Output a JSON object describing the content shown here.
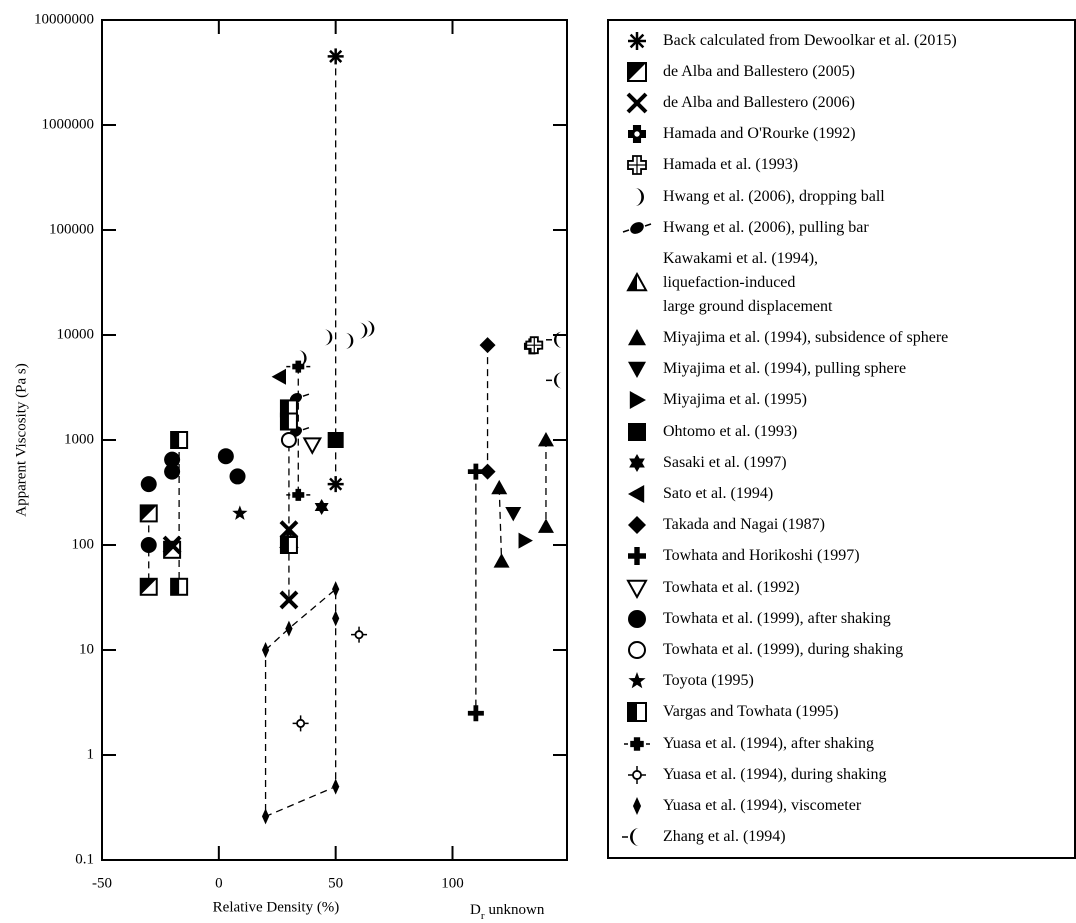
{
  "chart_data": {
    "type": "scatter",
    "x_label": "Relative Density (%)",
    "unknown_label": {
      "main": "D",
      "sub": "r",
      "rest": "unknown"
    },
    "y_label": "Apparent Viscosity (Pa s)",
    "xlim": [
      -50,
      149
    ],
    "xticks": [
      -50,
      0,
      50,
      100
    ],
    "ylim": [
      0.1,
      10000000
    ],
    "yticks": [
      0.1,
      1,
      10,
      100,
      1000,
      10000,
      100000,
      1000000,
      10000000
    ],
    "log_y": true,
    "series": [
      {
        "name": "Back calculated from Dewoolkar et al. (2015)",
        "marker": "asterisk",
        "color": "#000000",
        "dashed": true,
        "x": [
          50,
          50
        ],
        "values": [
          4500000,
          380
        ]
      },
      {
        "name": "de Alba and Ballestero (2005)",
        "marker": "halfsq_diag",
        "color": "#000000",
        "dashed": true,
        "x": [
          -30,
          -30,
          null,
          -20
        ],
        "values": [
          200,
          40,
          null,
          90
        ]
      },
      {
        "name": "de Alba and Ballestero (2006)",
        "marker": "x",
        "color": "#000000",
        "dashed": true,
        "x": [
          -20,
          null,
          30,
          30
        ],
        "values": [
          100,
          null,
          140,
          30
        ]
      },
      {
        "name": "Hamada and O'Rourke (1992)",
        "marker": "cross_bold",
        "color": "#000000",
        "x": [
          134
        ],
        "values": [
          7800
        ]
      },
      {
        "name": "Hamada et al. (1993)",
        "marker": "cross_hollow",
        "color": "#000000",
        "x": [
          135
        ],
        "values": [
          8000
        ]
      },
      {
        "name": "Hwang et al. (2006), dropping ball",
        "marker": "crescent_r",
        "color": "#000000",
        "x": [
          35,
          46,
          55,
          61,
          64
        ],
        "values": [
          6000,
          9500,
          8800,
          11000,
          11500
        ]
      },
      {
        "name": "Hwang et al. (2006), pulling bar",
        "marker": "ball_dash",
        "color": "#000000",
        "x": [
          33,
          33
        ],
        "values": [
          2500,
          1200
        ]
      },
      {
        "name": "Kawakami et al. (1994),\nliquefaction-induced\nlarge ground displacement",
        "marker": "half_tri",
        "color": "#000000",
        "x": [
          30
        ],
        "values": [
          110
        ]
      },
      {
        "name": "Miyajima et al. (1994), subsidence of sphere",
        "marker": "tri_up",
        "color": "#000000",
        "dashed": true,
        "x": [
          120,
          121,
          null,
          140,
          140
        ],
        "values": [
          350,
          70,
          null,
          1000,
          150
        ]
      },
      {
        "name": "Miyajima et al. (1994), pulling sphere",
        "marker": "tri_down",
        "color": "#000000",
        "x": [
          126
        ],
        "values": [
          200
        ]
      },
      {
        "name": "Miyajima et al. (1995)",
        "marker": "tri_right",
        "color": "#000000",
        "x": [
          131
        ],
        "values": [
          110
        ]
      },
      {
        "name": "Ohtomo et al. (1993)",
        "marker": "square",
        "color": "#000000",
        "x": [
          50
        ],
        "values": [
          1000
        ]
      },
      {
        "name": "Sasaki et al. (1997)",
        "marker": "star6",
        "color": "#000000",
        "x": [
          44
        ],
        "values": [
          230
        ]
      },
      {
        "name": "Sato et al. (1994)",
        "marker": "tri_left",
        "color": "#000000",
        "x": [
          26
        ],
        "values": [
          4000
        ]
      },
      {
        "name": "Takada and Nagai (1987)",
        "marker": "diamond",
        "color": "#000000",
        "dashed": true,
        "x": [
          115,
          115
        ],
        "values": [
          8000,
          500
        ]
      },
      {
        "name": "Towhata and Horikoshi (1997)",
        "marker": "plus_bold",
        "color": "#000000",
        "dashed": true,
        "x": [
          110,
          110
        ],
        "values": [
          500,
          2.5
        ]
      },
      {
        "name": "Towhata et al. (1992)",
        "marker": "tri_down_hollow",
        "color": "#000000",
        "x": [
          40
        ],
        "values": [
          900
        ]
      },
      {
        "name": "Towhata et al. (1999), after shaking",
        "marker": "circle",
        "color": "#000000",
        "x": [
          -30,
          -30,
          -20,
          -20,
          3,
          8
        ],
        "values": [
          380,
          100,
          650,
          500,
          700,
          450
        ]
      },
      {
        "name": "Towhata et al. (1999), during shaking",
        "marker": "circle_hollow",
        "color": "#000000",
        "x": [
          30
        ],
        "values": [
          1000
        ]
      },
      {
        "name": "Toyota (1995)",
        "marker": "star5",
        "color": "#000000",
        "x": [
          9
        ],
        "values": [
          200
        ]
      },
      {
        "name": "Vargas and Towhata (1995)",
        "marker": "halfsq_vert",
        "color": "#000000",
        "dashed": true,
        "x": [
          -17,
          -17,
          null,
          30,
          30,
          30
        ],
        "values": [
          1000,
          40,
          null,
          2000,
          1500,
          100
        ]
      },
      {
        "name": "Yuasa et al. (1994), after shaking",
        "marker": "plus_dash",
        "color": "#000000",
        "dashed": true,
        "x": [
          34,
          34
        ],
        "values": [
          5000,
          300
        ]
      },
      {
        "name": "Yuasa et al. (1994), during shaking",
        "marker": "diamond_hollow",
        "color": "#000000",
        "x": [
          35,
          60
        ],
        "values": [
          2,
          14
        ]
      },
      {
        "name": "Yuasa et al. (1994), viscometer",
        "marker": "thin_diamond",
        "color": "#000000",
        "dashed": true,
        "closed": true,
        "x": [
          20,
          30,
          50,
          50,
          50,
          20
        ],
        "values": [
          10,
          16,
          38,
          20,
          0.5,
          0.26
        ]
      },
      {
        "name": "Zhang et al. (1994)",
        "marker": "crescent_l",
        "color": "#000000",
        "x": [
          146,
          146
        ],
        "values": [
          9000,
          3700
        ]
      }
    ]
  }
}
